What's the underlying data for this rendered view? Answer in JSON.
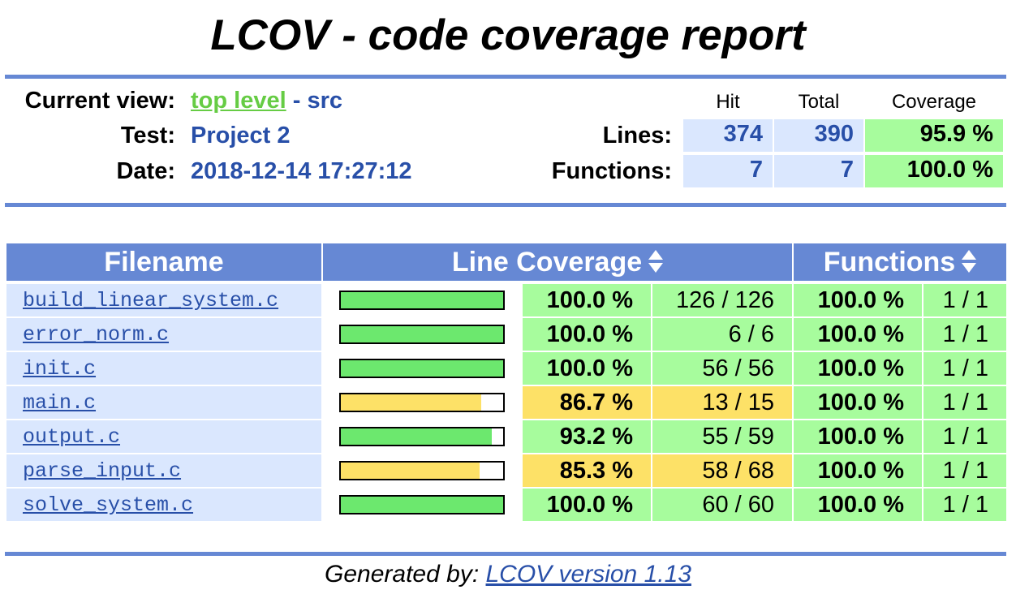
{
  "page_title": "LCOV - code coverage report",
  "header": {
    "current_view_label": "Current view:",
    "current_view_link": "top level",
    "current_view_sep": " - ",
    "current_view_dir": "src",
    "test_label": "Test:",
    "test_value": "Project 2",
    "date_label": "Date:",
    "date_value": "2018-12-14 17:27:12",
    "col_hit": "Hit",
    "col_total": "Total",
    "col_coverage": "Coverage",
    "lines_label": "Lines:",
    "lines_hit": "374",
    "lines_total": "390",
    "lines_coverage": "95.9 %",
    "functions_label": "Functions:",
    "functions_hit": "7",
    "functions_total": "7",
    "functions_coverage": "100.0 %"
  },
  "table": {
    "headers": {
      "filename": "Filename",
      "line_coverage": "Line Coverage",
      "functions": "Functions"
    },
    "rows": [
      {
        "file": "build_linear_system.c",
        "line_pct": "100.0 %",
        "line_ratio": "126 / 126",
        "fn_pct": "100.0 %",
        "fn_ratio": "1 / 1",
        "coverage_fraction": 1.0,
        "level": "hi"
      },
      {
        "file": "error_norm.c",
        "line_pct": "100.0 %",
        "line_ratio": "6 / 6",
        "fn_pct": "100.0 %",
        "fn_ratio": "1 / 1",
        "coverage_fraction": 1.0,
        "level": "hi"
      },
      {
        "file": "init.c",
        "line_pct": "100.0 %",
        "line_ratio": "56 / 56",
        "fn_pct": "100.0 %",
        "fn_ratio": "1 / 1",
        "coverage_fraction": 1.0,
        "level": "hi"
      },
      {
        "file": "main.c",
        "line_pct": "86.7 %",
        "line_ratio": "13 / 15",
        "fn_pct": "100.0 %",
        "fn_ratio": "1 / 1",
        "coverage_fraction": 0.867,
        "level": "med"
      },
      {
        "file": "output.c",
        "line_pct": "93.2 %",
        "line_ratio": "55 / 59",
        "fn_pct": "100.0 %",
        "fn_ratio": "1 / 1",
        "coverage_fraction": 0.932,
        "level": "hi"
      },
      {
        "file": "parse_input.c",
        "line_pct": "85.3 %",
        "line_ratio": "58 / 68",
        "fn_pct": "100.0 %",
        "fn_ratio": "1 / 1",
        "coverage_fraction": 0.853,
        "level": "med"
      },
      {
        "file": "solve_system.c",
        "line_pct": "100.0 %",
        "line_ratio": "60 / 60",
        "fn_pct": "100.0 %",
        "fn_ratio": "1 / 1",
        "coverage_fraction": 1.0,
        "level": "hi"
      }
    ]
  },
  "footer": {
    "generated_by": "Generated by: ",
    "link": "LCOV version 1.13"
  },
  "colors": {
    "rule": "#6688d4",
    "link_blue": "#284fa8",
    "link_green": "#66cc44",
    "hi_bg": "#a7fc9d",
    "med_bg": "#fde167",
    "bar_hi": "#6ce86e",
    "bar_med": "#fde167",
    "hdr_blue_bg": "#dae7fe"
  }
}
